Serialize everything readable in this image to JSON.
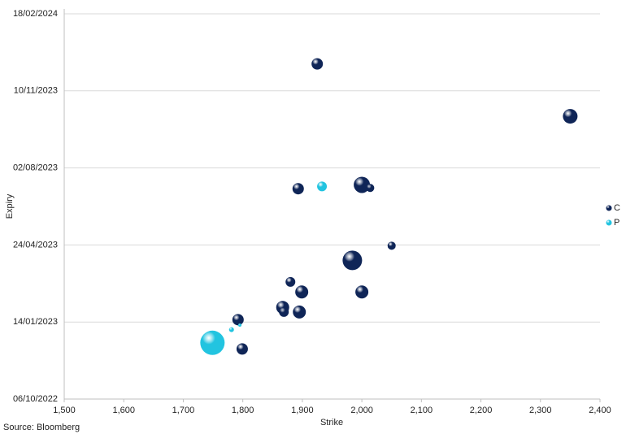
{
  "chart_data": {
    "type": "bubble",
    "x_label": "Strike",
    "y_label": "Expiry",
    "source": "Source: Bloomberg",
    "xlim": [
      1500,
      2400
    ],
    "xticks": [
      {
        "value": 1500,
        "label": "1,500"
      },
      {
        "value": 1600,
        "label": "1,600"
      },
      {
        "value": 1700,
        "label": "1,700"
      },
      {
        "value": 1800,
        "label": "1,800"
      },
      {
        "value": 1900,
        "label": "1,900"
      },
      {
        "value": 2000,
        "label": "2,000"
      },
      {
        "value": 2100,
        "label": "2,100"
      },
      {
        "value": 2200,
        "label": "2,200"
      },
      {
        "value": 2300,
        "label": "2,300"
      },
      {
        "value": 2400,
        "label": "2,400"
      }
    ],
    "ylim": [
      "06/10/2022",
      "18/02/2024"
    ],
    "yticks": [
      "06/10/2022",
      "14/01/2023",
      "24/04/2023",
      "02/08/2023",
      "10/11/2023",
      "18/02/2024"
    ],
    "grid": true,
    "legend": "right",
    "series": [
      {
        "name": "C",
        "color": "#0f2557",
        "x": [
          1925,
          2350,
          1893,
          2000,
          2014,
          2050,
          1984,
          1880,
          1899,
          2000,
          1867,
          1869,
          1895,
          1792,
          1799
        ],
        "values": [
          "15/12/2023",
          "08/10/2023",
          "06/07/2023",
          "11/07/2023",
          "07/07/2023",
          "23/04/2023",
          "04/04/2023",
          "07/03/2023",
          "22/02/2023",
          "22/02/2023",
          "02/02/2023",
          "27/01/2023",
          "27/01/2023",
          "17/01/2023",
          "10/12/2022"
        ],
        "sizes": [
          7,
          9,
          7,
          10,
          5,
          5,
          12,
          6,
          8,
          8,
          8,
          6,
          8,
          7,
          7
        ]
      },
      {
        "name": "P",
        "color": "#22c4e0",
        "x": [
          1933,
          1749,
          1781,
          1795
        ],
        "values": [
          "09/07/2023",
          "18/12/2022",
          "04/01/2023",
          "10/01/2023"
        ],
        "sizes": [
          6,
          15,
          3,
          2
        ]
      }
    ]
  }
}
